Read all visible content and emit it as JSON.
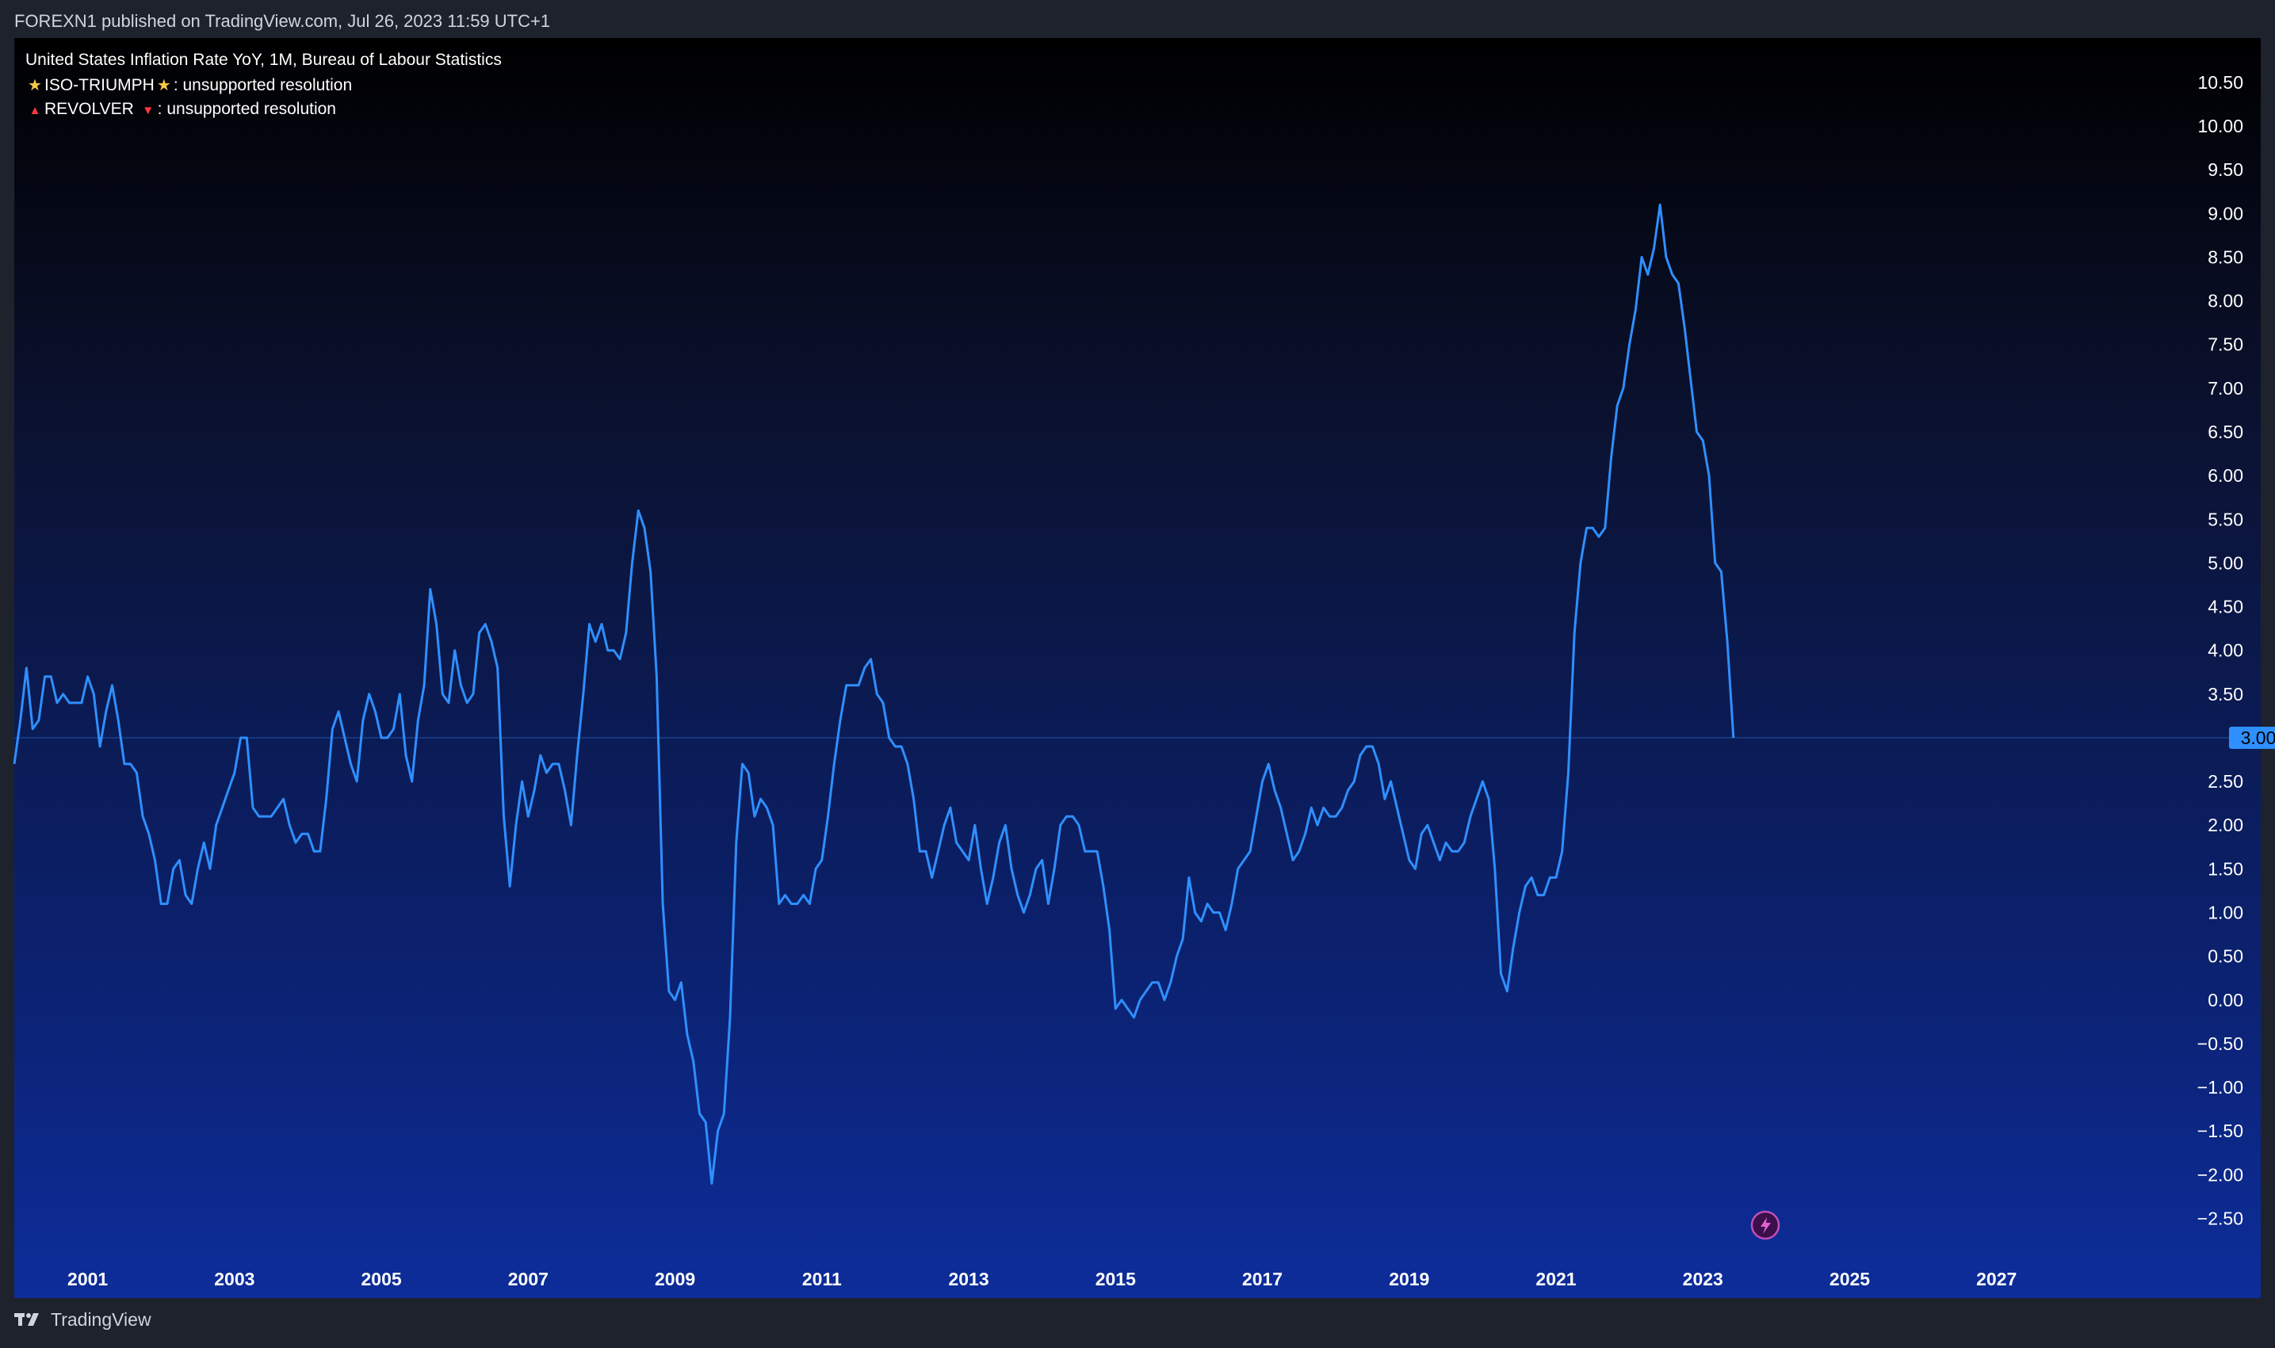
{
  "publish_line": "FOREXN1 published on TradingView.com, Jul 26, 2023 11:59 UTC+1",
  "legend": {
    "title": "United States Inflation Rate YoY, 1M, Bureau of Labour Statistics",
    "iso": {
      "icon": "star-icon",
      "label": "ISO-TRIUMPH",
      "suffix": ": unsupported resolution"
    },
    "revolver": {
      "icon": "triangle-icon",
      "label": "REVOLVER",
      "suffix": ": unsupported resolution"
    }
  },
  "footer": {
    "brand": "TradingView",
    "icon": "tradingview-logo-icon"
  },
  "colors": {
    "line": "#2f8fff",
    "price_badge": "#2f8fff",
    "background_top": "#000000",
    "background_bottom": "#0d2d9a"
  },
  "chart_data": {
    "type": "line",
    "series": [
      {
        "name": "United States Inflation Rate YoY",
        "x": [
          "2000-01",
          "2000-02",
          "2000-03",
          "2000-04",
          "2000-05",
          "2000-06",
          "2000-07",
          "2000-08",
          "2000-09",
          "2000-10",
          "2000-11",
          "2000-12",
          "2001-01",
          "2001-02",
          "2001-03",
          "2001-04",
          "2001-05",
          "2001-06",
          "2001-07",
          "2001-08",
          "2001-09",
          "2001-10",
          "2001-11",
          "2001-12",
          "2002-01",
          "2002-02",
          "2002-03",
          "2002-04",
          "2002-05",
          "2002-06",
          "2002-07",
          "2002-08",
          "2002-09",
          "2002-10",
          "2002-11",
          "2002-12",
          "2003-01",
          "2003-02",
          "2003-03",
          "2003-04",
          "2003-05",
          "2003-06",
          "2003-07",
          "2003-08",
          "2003-09",
          "2003-10",
          "2003-11",
          "2003-12",
          "2004-01",
          "2004-02",
          "2004-03",
          "2004-04",
          "2004-05",
          "2004-06",
          "2004-07",
          "2004-08",
          "2004-09",
          "2004-10",
          "2004-11",
          "2004-12",
          "2005-01",
          "2005-02",
          "2005-03",
          "2005-04",
          "2005-05",
          "2005-06",
          "2005-07",
          "2005-08",
          "2005-09",
          "2005-10",
          "2005-11",
          "2005-12",
          "2006-01",
          "2006-02",
          "2006-03",
          "2006-04",
          "2006-05",
          "2006-06",
          "2006-07",
          "2006-08",
          "2006-09",
          "2006-10",
          "2006-11",
          "2006-12",
          "2007-01",
          "2007-02",
          "2007-03",
          "2007-04",
          "2007-05",
          "2007-06",
          "2007-07",
          "2007-08",
          "2007-09",
          "2007-10",
          "2007-11",
          "2007-12",
          "2008-01",
          "2008-02",
          "2008-03",
          "2008-04",
          "2008-05",
          "2008-06",
          "2008-07",
          "2008-08",
          "2008-09",
          "2008-10",
          "2008-11",
          "2008-12",
          "2009-01",
          "2009-02",
          "2009-03",
          "2009-04",
          "2009-05",
          "2009-06",
          "2009-07",
          "2009-08",
          "2009-09",
          "2009-10",
          "2009-11",
          "2009-12",
          "2010-01",
          "2010-02",
          "2010-03",
          "2010-04",
          "2010-05",
          "2010-06",
          "2010-07",
          "2010-08",
          "2010-09",
          "2010-10",
          "2010-11",
          "2010-12",
          "2011-01",
          "2011-02",
          "2011-03",
          "2011-04",
          "2011-05",
          "2011-06",
          "2011-07",
          "2011-08",
          "2011-09",
          "2011-10",
          "2011-11",
          "2011-12",
          "2012-01",
          "2012-02",
          "2012-03",
          "2012-04",
          "2012-05",
          "2012-06",
          "2012-07",
          "2012-08",
          "2012-09",
          "2012-10",
          "2012-11",
          "2012-12",
          "2013-01",
          "2013-02",
          "2013-03",
          "2013-04",
          "2013-05",
          "2013-06",
          "2013-07",
          "2013-08",
          "2013-09",
          "2013-10",
          "2013-11",
          "2013-12",
          "2014-01",
          "2014-02",
          "2014-03",
          "2014-04",
          "2014-05",
          "2014-06",
          "2014-07",
          "2014-08",
          "2014-09",
          "2014-10",
          "2014-11",
          "2014-12",
          "2015-01",
          "2015-02",
          "2015-03",
          "2015-04",
          "2015-05",
          "2015-06",
          "2015-07",
          "2015-08",
          "2015-09",
          "2015-10",
          "2015-11",
          "2015-12",
          "2016-01",
          "2016-02",
          "2016-03",
          "2016-04",
          "2016-05",
          "2016-06",
          "2016-07",
          "2016-08",
          "2016-09",
          "2016-10",
          "2016-11",
          "2016-12",
          "2017-01",
          "2017-02",
          "2017-03",
          "2017-04",
          "2017-05",
          "2017-06",
          "2017-07",
          "2017-08",
          "2017-09",
          "2017-10",
          "2017-11",
          "2017-12",
          "2018-01",
          "2018-02",
          "2018-03",
          "2018-04",
          "2018-05",
          "2018-06",
          "2018-07",
          "2018-08",
          "2018-09",
          "2018-10",
          "2018-11",
          "2018-12",
          "2019-01",
          "2019-02",
          "2019-03",
          "2019-04",
          "2019-05",
          "2019-06",
          "2019-07",
          "2019-08",
          "2019-09",
          "2019-10",
          "2019-11",
          "2019-12",
          "2020-01",
          "2020-02",
          "2020-03",
          "2020-04",
          "2020-05",
          "2020-06",
          "2020-07",
          "2020-08",
          "2020-09",
          "2020-10",
          "2020-11",
          "2020-12",
          "2021-01",
          "2021-02",
          "2021-03",
          "2021-04",
          "2021-05",
          "2021-06",
          "2021-07",
          "2021-08",
          "2021-09",
          "2021-10",
          "2021-11",
          "2021-12",
          "2022-01",
          "2022-02",
          "2022-03",
          "2022-04",
          "2022-05",
          "2022-06",
          "2022-07",
          "2022-08",
          "2022-09",
          "2022-10",
          "2022-11",
          "2022-12",
          "2023-01",
          "2023-02",
          "2023-03",
          "2023-04",
          "2023-05",
          "2023-06"
        ],
        "values": [
          2.7,
          3.2,
          3.8,
          3.1,
          3.2,
          3.7,
          3.7,
          3.4,
          3.5,
          3.4,
          3.4,
          3.4,
          3.7,
          3.5,
          2.9,
          3.3,
          3.6,
          3.2,
          2.7,
          2.7,
          2.6,
          2.1,
          1.9,
          1.6,
          1.1,
          1.1,
          1.5,
          1.6,
          1.2,
          1.1,
          1.5,
          1.8,
          1.5,
          2.0,
          2.2,
          2.4,
          2.6,
          3.0,
          3.0,
          2.2,
          2.1,
          2.1,
          2.1,
          2.2,
          2.3,
          2.0,
          1.8,
          1.9,
          1.9,
          1.7,
          1.7,
          2.3,
          3.1,
          3.3,
          3.0,
          2.7,
          2.5,
          3.2,
          3.5,
          3.3,
          3.0,
          3.0,
          3.1,
          3.5,
          2.8,
          2.5,
          3.2,
          3.6,
          4.7,
          4.3,
          3.5,
          3.4,
          4.0,
          3.6,
          3.4,
          3.5,
          4.2,
          4.3,
          4.1,
          3.8,
          2.1,
          1.3,
          2.0,
          2.5,
          2.1,
          2.4,
          2.8,
          2.6,
          2.7,
          2.7,
          2.4,
          2.0,
          2.8,
          3.5,
          4.3,
          4.1,
          4.3,
          4.0,
          4.0,
          3.9,
          4.2,
          5.0,
          5.6,
          5.4,
          4.9,
          3.7,
          1.1,
          0.1,
          0.0,
          0.2,
          -0.4,
          -0.7,
          -1.3,
          -1.4,
          -2.1,
          -1.5,
          -1.3,
          -0.2,
          1.8,
          2.7,
          2.6,
          2.1,
          2.3,
          2.2,
          2.0,
          1.1,
          1.2,
          1.1,
          1.1,
          1.2,
          1.1,
          1.5,
          1.6,
          2.1,
          2.7,
          3.2,
          3.6,
          3.6,
          3.6,
          3.8,
          3.9,
          3.5,
          3.4,
          3.0,
          2.9,
          2.9,
          2.7,
          2.3,
          1.7,
          1.7,
          1.4,
          1.7,
          2.0,
          2.2,
          1.8,
          1.7,
          1.6,
          2.0,
          1.5,
          1.1,
          1.4,
          1.8,
          2.0,
          1.5,
          1.2,
          1.0,
          1.2,
          1.5,
          1.6,
          1.1,
          1.5,
          2.0,
          2.1,
          2.1,
          2.0,
          1.7,
          1.7,
          1.7,
          1.3,
          0.8,
          -0.1,
          0.0,
          -0.1,
          -0.2,
          0.0,
          0.1,
          0.2,
          0.2,
          0.0,
          0.2,
          0.5,
          0.7,
          1.4,
          1.0,
          0.9,
          1.1,
          1.0,
          1.0,
          0.8,
          1.1,
          1.5,
          1.6,
          1.7,
          2.1,
          2.5,
          2.7,
          2.4,
          2.2,
          1.9,
          1.6,
          1.7,
          1.9,
          2.2,
          2.0,
          2.2,
          2.1,
          2.1,
          2.2,
          2.4,
          2.5,
          2.8,
          2.9,
          2.9,
          2.7,
          2.3,
          2.5,
          2.2,
          1.9,
          1.6,
          1.5,
          1.9,
          2.0,
          1.8,
          1.6,
          1.8,
          1.7,
          1.7,
          1.8,
          2.1,
          2.3,
          2.5,
          2.3,
          1.5,
          0.3,
          0.1,
          0.6,
          1.0,
          1.3,
          1.4,
          1.2,
          1.2,
          1.4,
          1.4,
          1.7,
          2.6,
          4.2,
          5.0,
          5.4,
          5.4,
          5.3,
          5.4,
          6.2,
          6.8,
          7.0,
          7.5,
          7.9,
          8.5,
          8.3,
          8.6,
          9.1,
          8.5,
          8.3,
          8.2,
          7.7,
          7.1,
          6.5,
          6.4,
          6.0,
          5.0,
          4.9,
          4.1,
          3.0
        ]
      }
    ],
    "y_axis": {
      "ticks": [
        "10.50",
        "10.00",
        "9.50",
        "9.00",
        "8.50",
        "8.00",
        "7.50",
        "7.00",
        "6.50",
        "6.00",
        "5.50",
        "5.00",
        "4.50",
        "4.00",
        "3.50",
        "3.00",
        "2.50",
        "2.00",
        "1.50",
        "1.00",
        "0.50",
        "0.00",
        "−0.50",
        "−1.00",
        "−1.50",
        "−2.00",
        "−2.50"
      ],
      "range": [
        -2.85,
        10.75
      ],
      "position": "right"
    },
    "x_axis": {
      "ticks": [
        "2001",
        "2003",
        "2005",
        "2007",
        "2009",
        "2011",
        "2013",
        "2015",
        "2017",
        "2019",
        "2021",
        "2023",
        "2025",
        "2027"
      ],
      "range": [
        "2000-01",
        "2029-08"
      ]
    },
    "last_value": 3.0,
    "last_value_label": "3.00",
    "grid": false,
    "legend_placement": "top-left"
  }
}
